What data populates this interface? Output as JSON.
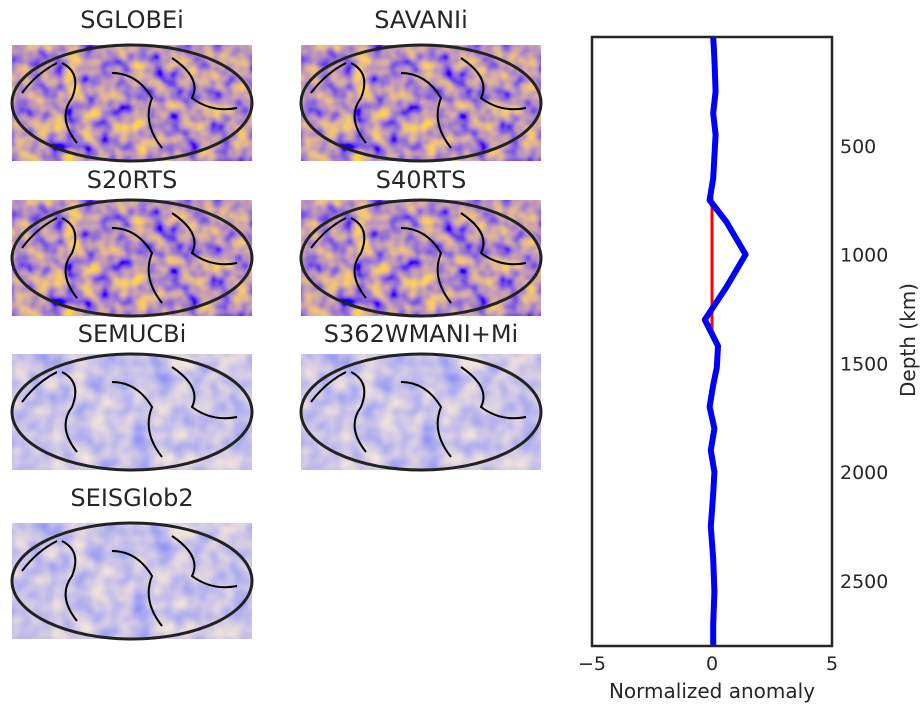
{
  "maps": [
    {
      "title": "SGLOBEi"
    },
    {
      "title": "SAVANIi"
    },
    {
      "title": "S20RTS"
    },
    {
      "title": "S40RTS"
    },
    {
      "title": "SEMUCBi"
    },
    {
      "title": "S362WMANI+Mi"
    },
    {
      "title": "SEISGlob2"
    }
  ],
  "chart_data": {
    "type": "line",
    "title": "",
    "xlabel": "Normalized anomaly",
    "ylabel": "Depth (km)",
    "xlim": [
      -5,
      5
    ],
    "ylim": [
      2800,
      0
    ],
    "xticks": [
      -5,
      0,
      5
    ],
    "yticks": [
      500,
      1000,
      1500,
      2000,
      2500
    ],
    "grid": false,
    "series": [
      {
        "color": "#ff0000",
        "points": [
          [
            0,
            700
          ],
          [
            0,
            1350
          ]
        ]
      },
      {
        "color": "#0000ff",
        "points": [
          [
            0.05,
            0
          ],
          [
            0.1,
            100
          ],
          [
            0.15,
            250
          ],
          [
            0.05,
            350
          ],
          [
            0.15,
            450
          ],
          [
            0.1,
            550
          ],
          [
            0.05,
            650
          ],
          [
            -0.1,
            750
          ],
          [
            0.6,
            850
          ],
          [
            1.4,
            1000
          ],
          [
            0.6,
            1150
          ],
          [
            -0.3,
            1300
          ],
          [
            0.25,
            1420
          ],
          [
            0.2,
            1520
          ],
          [
            0.05,
            1600
          ],
          [
            -0.1,
            1700
          ],
          [
            0.1,
            1800
          ],
          [
            -0.05,
            1900
          ],
          [
            0.1,
            2000
          ],
          [
            0.05,
            2100
          ],
          [
            -0.05,
            2250
          ],
          [
            0.05,
            2400
          ],
          [
            0.1,
            2550
          ],
          [
            0.05,
            2700
          ],
          [
            0.05,
            2800
          ]
        ]
      }
    ]
  }
}
